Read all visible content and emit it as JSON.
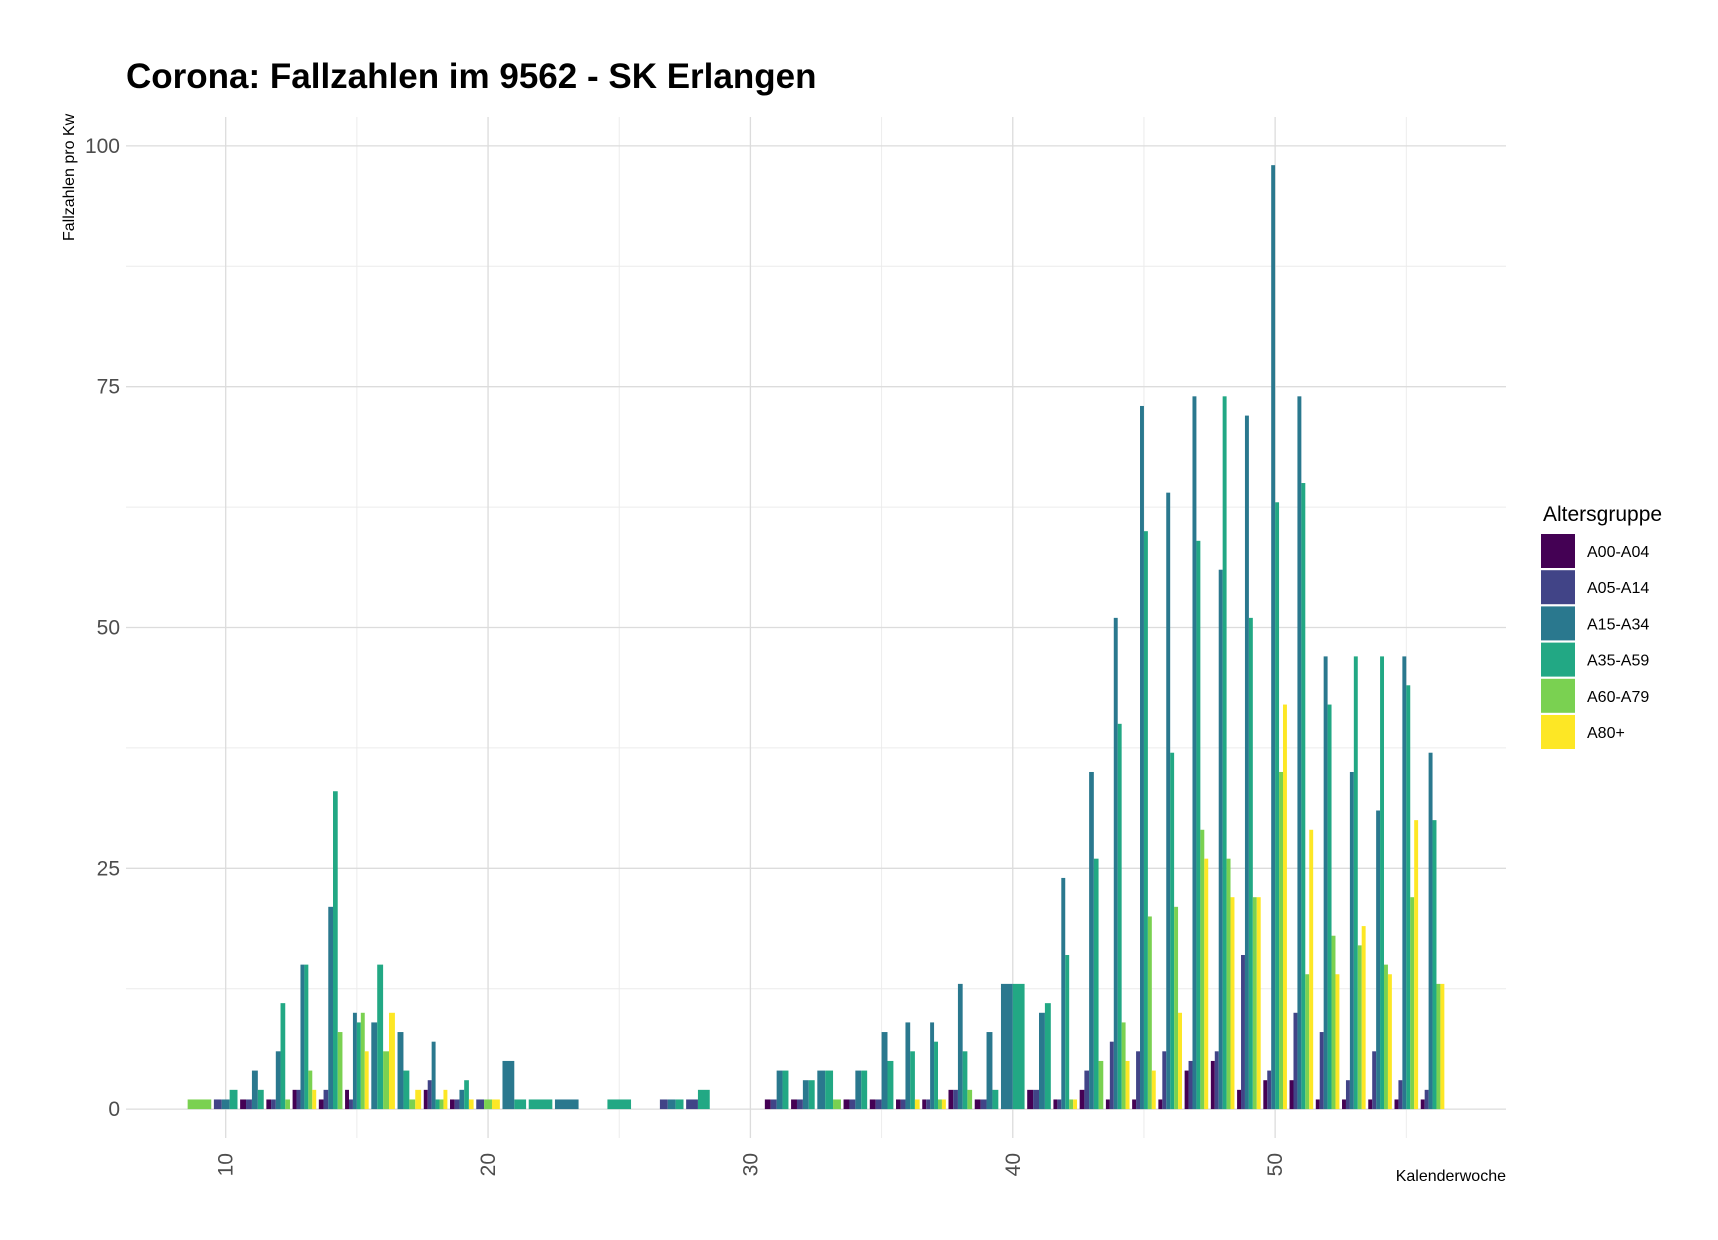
{
  "chart_data": {
    "type": "bar",
    "title": "Corona: Fallzahlen im 9562 - SK Erlangen",
    "xlabel": "Kalenderwoche",
    "ylabel": "Fallzahlen pro Kw",
    "xlim": [
      6.2,
      58.8
    ],
    "ylim": [
      -3,
      103
    ],
    "x_ticks": [
      10,
      20,
      30,
      40,
      50
    ],
    "y_ticks": [
      0,
      25,
      50,
      75,
      100
    ],
    "grid": true,
    "legend": {
      "title": "Altersgruppe",
      "position": "right"
    },
    "series": [
      {
        "name": "A00-A04",
        "color": "#440154",
        "points": [
          [
            11,
            1
          ],
          [
            12,
            1
          ],
          [
            13,
            2
          ],
          [
            14,
            1
          ],
          [
            15,
            2
          ],
          [
            18,
            2
          ],
          [
            19,
            1
          ],
          [
            31,
            1
          ],
          [
            32,
            1
          ],
          [
            34,
            1
          ],
          [
            35,
            1
          ],
          [
            36,
            1
          ],
          [
            37,
            1
          ],
          [
            38,
            2
          ],
          [
            39,
            1
          ],
          [
            41,
            2
          ],
          [
            42,
            1
          ],
          [
            43,
            2
          ],
          [
            44,
            1
          ],
          [
            45,
            1
          ],
          [
            46,
            1
          ],
          [
            47,
            4
          ],
          [
            48,
            5
          ],
          [
            49,
            2
          ],
          [
            50,
            3
          ],
          [
            51,
            3
          ],
          [
            52,
            1
          ],
          [
            53,
            1
          ],
          [
            54,
            1
          ],
          [
            55,
            1
          ],
          [
            56,
            1
          ]
        ]
      },
      {
        "name": "A05-A14",
        "color": "#414487",
        "points": [
          [
            10,
            1
          ],
          [
            11,
            1
          ],
          [
            12,
            1
          ],
          [
            13,
            2
          ],
          [
            14,
            2
          ],
          [
            15,
            1
          ],
          [
            18,
            3
          ],
          [
            19,
            1
          ],
          [
            20,
            1
          ],
          [
            27,
            1
          ],
          [
            28,
            1
          ],
          [
            31,
            1
          ],
          [
            32,
            1
          ],
          [
            34,
            1
          ],
          [
            35,
            1
          ],
          [
            36,
            1
          ],
          [
            37,
            1
          ],
          [
            38,
            2
          ],
          [
            39,
            1
          ],
          [
            41,
            2
          ],
          [
            42,
            1
          ],
          [
            43,
            4
          ],
          [
            44,
            7
          ],
          [
            45,
            6
          ],
          [
            46,
            6
          ],
          [
            47,
            5
          ],
          [
            48,
            6
          ],
          [
            49,
            16
          ],
          [
            50,
            4
          ],
          [
            51,
            10
          ],
          [
            52,
            8
          ],
          [
            53,
            3
          ],
          [
            54,
            6
          ],
          [
            55,
            3
          ],
          [
            56,
            2
          ]
        ]
      },
      {
        "name": "A15-A34",
        "color": "#2A788E",
        "points": [
          [
            10,
            1
          ],
          [
            11,
            4
          ],
          [
            12,
            6
          ],
          [
            13,
            15
          ],
          [
            14,
            21
          ],
          [
            15,
            10
          ],
          [
            16,
            9
          ],
          [
            17,
            8
          ],
          [
            18,
            7
          ],
          [
            19,
            2
          ],
          [
            21,
            5
          ],
          [
            23,
            1
          ],
          [
            27,
            1
          ],
          [
            31,
            4
          ],
          [
            32,
            3
          ],
          [
            33,
            4
          ],
          [
            34,
            4
          ],
          [
            35,
            8
          ],
          [
            36,
            9
          ],
          [
            37,
            9
          ],
          [
            38,
            13
          ],
          [
            39,
            8
          ],
          [
            40,
            13
          ],
          [
            41,
            10
          ],
          [
            42,
            24
          ],
          [
            43,
            35
          ],
          [
            44,
            51
          ],
          [
            45,
            73
          ],
          [
            46,
            64
          ],
          [
            47,
            74
          ],
          [
            48,
            56
          ],
          [
            49,
            72
          ],
          [
            50,
            98
          ],
          [
            51,
            74
          ],
          [
            52,
            47
          ],
          [
            53,
            35
          ],
          [
            54,
            31
          ],
          [
            55,
            47
          ],
          [
            56,
            37
          ]
        ]
      },
      {
        "name": "A35-A59",
        "color": "#22A884",
        "points": [
          [
            10,
            2
          ],
          [
            11,
            2
          ],
          [
            12,
            11
          ],
          [
            13,
            15
          ],
          [
            14,
            33
          ],
          [
            15,
            9
          ],
          [
            16,
            15
          ],
          [
            17,
            4
          ],
          [
            18,
            1
          ],
          [
            19,
            3
          ],
          [
            21,
            1
          ],
          [
            22,
            1
          ],
          [
            25,
            1
          ],
          [
            27,
            1
          ],
          [
            28,
            2
          ],
          [
            31,
            4
          ],
          [
            32,
            3
          ],
          [
            33,
            4
          ],
          [
            34,
            4
          ],
          [
            35,
            5
          ],
          [
            36,
            6
          ],
          [
            37,
            7
          ],
          [
            38,
            6
          ],
          [
            39,
            2
          ],
          [
            40,
            13
          ],
          [
            41,
            11
          ],
          [
            42,
            16
          ],
          [
            43,
            26
          ],
          [
            44,
            40
          ],
          [
            45,
            60
          ],
          [
            46,
            37
          ],
          [
            47,
            59
          ],
          [
            48,
            74
          ],
          [
            49,
            51
          ],
          [
            50,
            63
          ],
          [
            51,
            65
          ],
          [
            52,
            42
          ],
          [
            53,
            47
          ],
          [
            54,
            47
          ],
          [
            55,
            44
          ],
          [
            56,
            30
          ]
        ]
      },
      {
        "name": "A60-A79",
        "color": "#7AD151",
        "points": [
          [
            9,
            1
          ],
          [
            12,
            1
          ],
          [
            13,
            4
          ],
          [
            14,
            8
          ],
          [
            15,
            10
          ],
          [
            16,
            6
          ],
          [
            17,
            1
          ],
          [
            18,
            1
          ],
          [
            20,
            1
          ],
          [
            33,
            1
          ],
          [
            37,
            1
          ],
          [
            38,
            2
          ],
          [
            42,
            1
          ],
          [
            43,
            5
          ],
          [
            44,
            9
          ],
          [
            45,
            20
          ],
          [
            46,
            21
          ],
          [
            47,
            29
          ],
          [
            48,
            26
          ],
          [
            49,
            22
          ],
          [
            50,
            35
          ],
          [
            51,
            14
          ],
          [
            52,
            18
          ],
          [
            53,
            17
          ],
          [
            54,
            15
          ],
          [
            55,
            22
          ],
          [
            56,
            13
          ]
        ]
      },
      {
        "name": "A80+",
        "color": "#FDE725",
        "points": [
          [
            13,
            2
          ],
          [
            15,
            6
          ],
          [
            16,
            10
          ],
          [
            17,
            2
          ],
          [
            18,
            2
          ],
          [
            19,
            1
          ],
          [
            20,
            1
          ],
          [
            36,
            1
          ],
          [
            37,
            1
          ],
          [
            42,
            1
          ],
          [
            44,
            5
          ],
          [
            45,
            4
          ],
          [
            46,
            10
          ],
          [
            47,
            26
          ],
          [
            48,
            22
          ],
          [
            49,
            22
          ],
          [
            50,
            42
          ],
          [
            51,
            29
          ],
          [
            52,
            14
          ],
          [
            53,
            19
          ],
          [
            54,
            14
          ],
          [
            55,
            30
          ],
          [
            56,
            13
          ]
        ]
      }
    ]
  }
}
